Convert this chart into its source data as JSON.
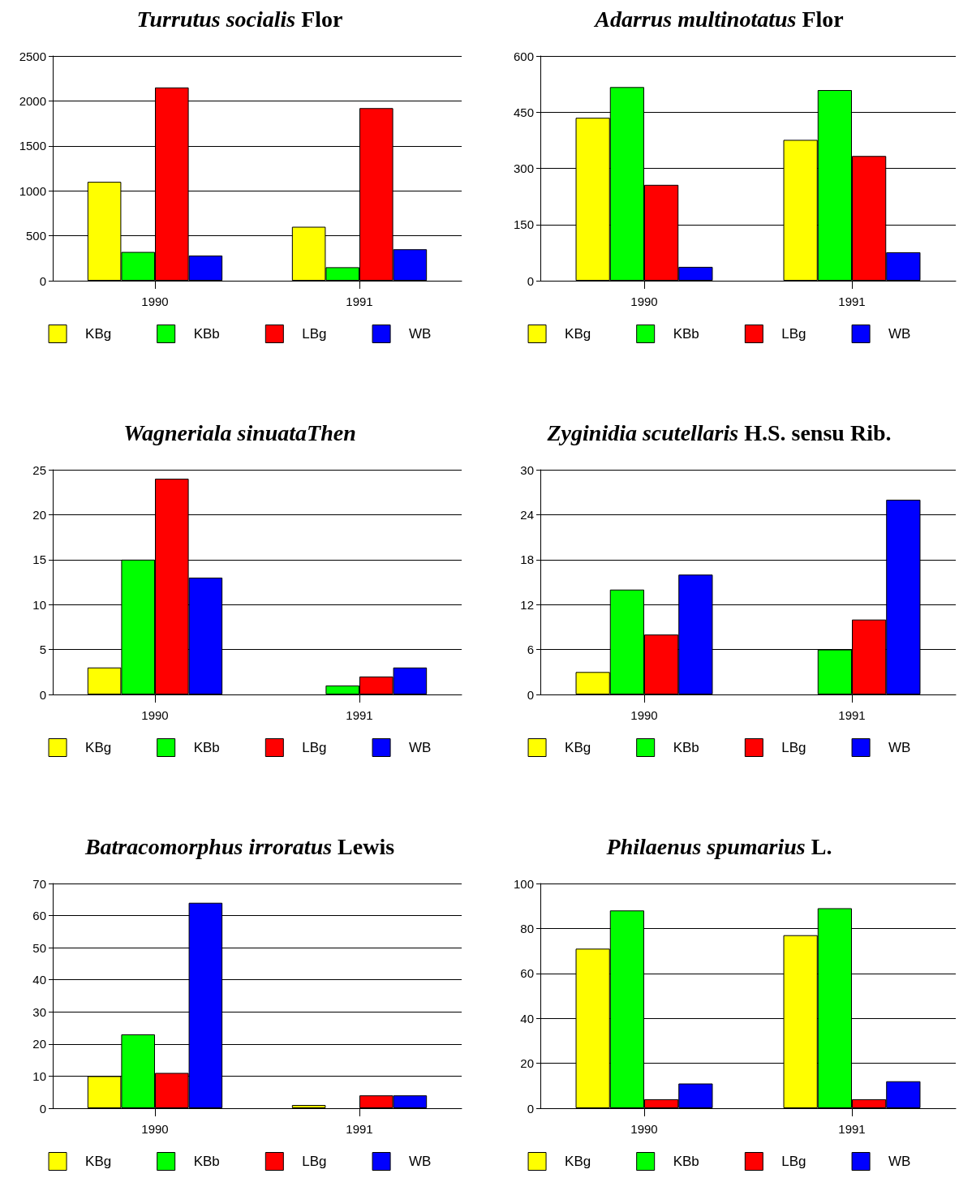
{
  "chart_data": [
    {
      "type": "bar",
      "title": "Turrutus socialis Flor",
      "categories": [
        "1990",
        "1991"
      ],
      "series": [
        {
          "name": "KBg",
          "color": "#ffff00",
          "values": [
            1100,
            600
          ]
        },
        {
          "name": "KBb",
          "color": "#00ff00",
          "values": [
            320,
            150
          ]
        },
        {
          "name": "LBg",
          "color": "#ff0000",
          "values": [
            2150,
            1920
          ]
        },
        {
          "name": "WB",
          "color": "#0000ff",
          "values": [
            280,
            350
          ]
        }
      ],
      "ylim": [
        0,
        2500
      ],
      "yticks": [
        0,
        500,
        1000,
        1500,
        2000,
        2500
      ],
      "grid": "y",
      "legend": "bottom"
    },
    {
      "type": "bar",
      "title": "Adarrus multinotatus Flor",
      "categories": [
        "1990",
        "1991"
      ],
      "series": [
        {
          "name": "KBg",
          "color": "#ffff00",
          "values": [
            435,
            376
          ]
        },
        {
          "name": "KBb",
          "color": "#00ff00",
          "values": [
            517,
            509
          ]
        },
        {
          "name": "LBg",
          "color": "#ff0000",
          "values": [
            256,
            333
          ]
        },
        {
          "name": "WB",
          "color": "#0000ff",
          "values": [
            37,
            76
          ]
        }
      ],
      "ylim": [
        0,
        600
      ],
      "yticks": [
        0,
        150,
        300,
        450,
        600
      ],
      "grid": "y",
      "legend": "bottom"
    },
    {
      "type": "bar",
      "title": "Wagneriala sinuataThen",
      "categories": [
        "1990",
        "1991"
      ],
      "series": [
        {
          "name": "KBg",
          "color": "#ffff00",
          "values": [
            3,
            null
          ]
        },
        {
          "name": "KBb",
          "color": "#00ff00",
          "values": [
            15,
            1
          ]
        },
        {
          "name": "LBg",
          "color": "#ff0000",
          "values": [
            24,
            2
          ]
        },
        {
          "name": "WB",
          "color": "#0000ff",
          "values": [
            13,
            3
          ]
        }
      ],
      "ylim": [
        0,
        25
      ],
      "yticks": [
        0,
        5,
        10,
        15,
        20,
        25
      ],
      "grid": "y",
      "legend": "bottom"
    },
    {
      "type": "bar",
      "title": "Zyginidia scutellaris H.S. sensu Rib.",
      "categories": [
        "1990",
        "1991"
      ],
      "series": [
        {
          "name": "KBg",
          "color": "#ffff00",
          "values": [
            3,
            null
          ]
        },
        {
          "name": "KBb",
          "color": "#00ff00",
          "values": [
            14,
            6
          ]
        },
        {
          "name": "LBg",
          "color": "#ff0000",
          "values": [
            8,
            10
          ]
        },
        {
          "name": "WB",
          "color": "#0000ff",
          "values": [
            16,
            26
          ]
        }
      ],
      "ylim": [
        0,
        30
      ],
      "yticks": [
        0,
        6,
        12,
        18,
        24,
        30
      ],
      "grid": "y",
      "legend": "bottom"
    },
    {
      "type": "bar",
      "title": "Batracomorphus irroratus Lewis",
      "categories": [
        "1990",
        "1991"
      ],
      "series": [
        {
          "name": "KBg",
          "color": "#ffff00",
          "values": [
            10,
            1
          ]
        },
        {
          "name": "KBb",
          "color": "#00ff00",
          "values": [
            23,
            null
          ]
        },
        {
          "name": "LBg",
          "color": "#ff0000",
          "values": [
            11,
            4
          ]
        },
        {
          "name": "WB",
          "color": "#0000ff",
          "values": [
            64,
            4
          ]
        }
      ],
      "ylim": [
        0,
        70
      ],
      "yticks": [
        0,
        10,
        20,
        30,
        40,
        50,
        60,
        70
      ],
      "grid": "y",
      "legend": "bottom"
    },
    {
      "type": "bar",
      "title": "Philaenus spumarius L.",
      "categories": [
        "1990",
        "1991"
      ],
      "series": [
        {
          "name": "KBg",
          "color": "#ffff00",
          "values": [
            71,
            77
          ]
        },
        {
          "name": "KBb",
          "color": "#00ff00",
          "values": [
            88,
            89
          ]
        },
        {
          "name": "LBg",
          "color": "#ff0000",
          "values": [
            4,
            4
          ]
        },
        {
          "name": "WB",
          "color": "#0000ff",
          "values": [
            11,
            12
          ]
        }
      ],
      "ylim": [
        0,
        100
      ],
      "yticks": [
        0,
        20,
        40,
        60,
        80,
        100
      ],
      "grid": "y",
      "legend": "bottom"
    }
  ]
}
